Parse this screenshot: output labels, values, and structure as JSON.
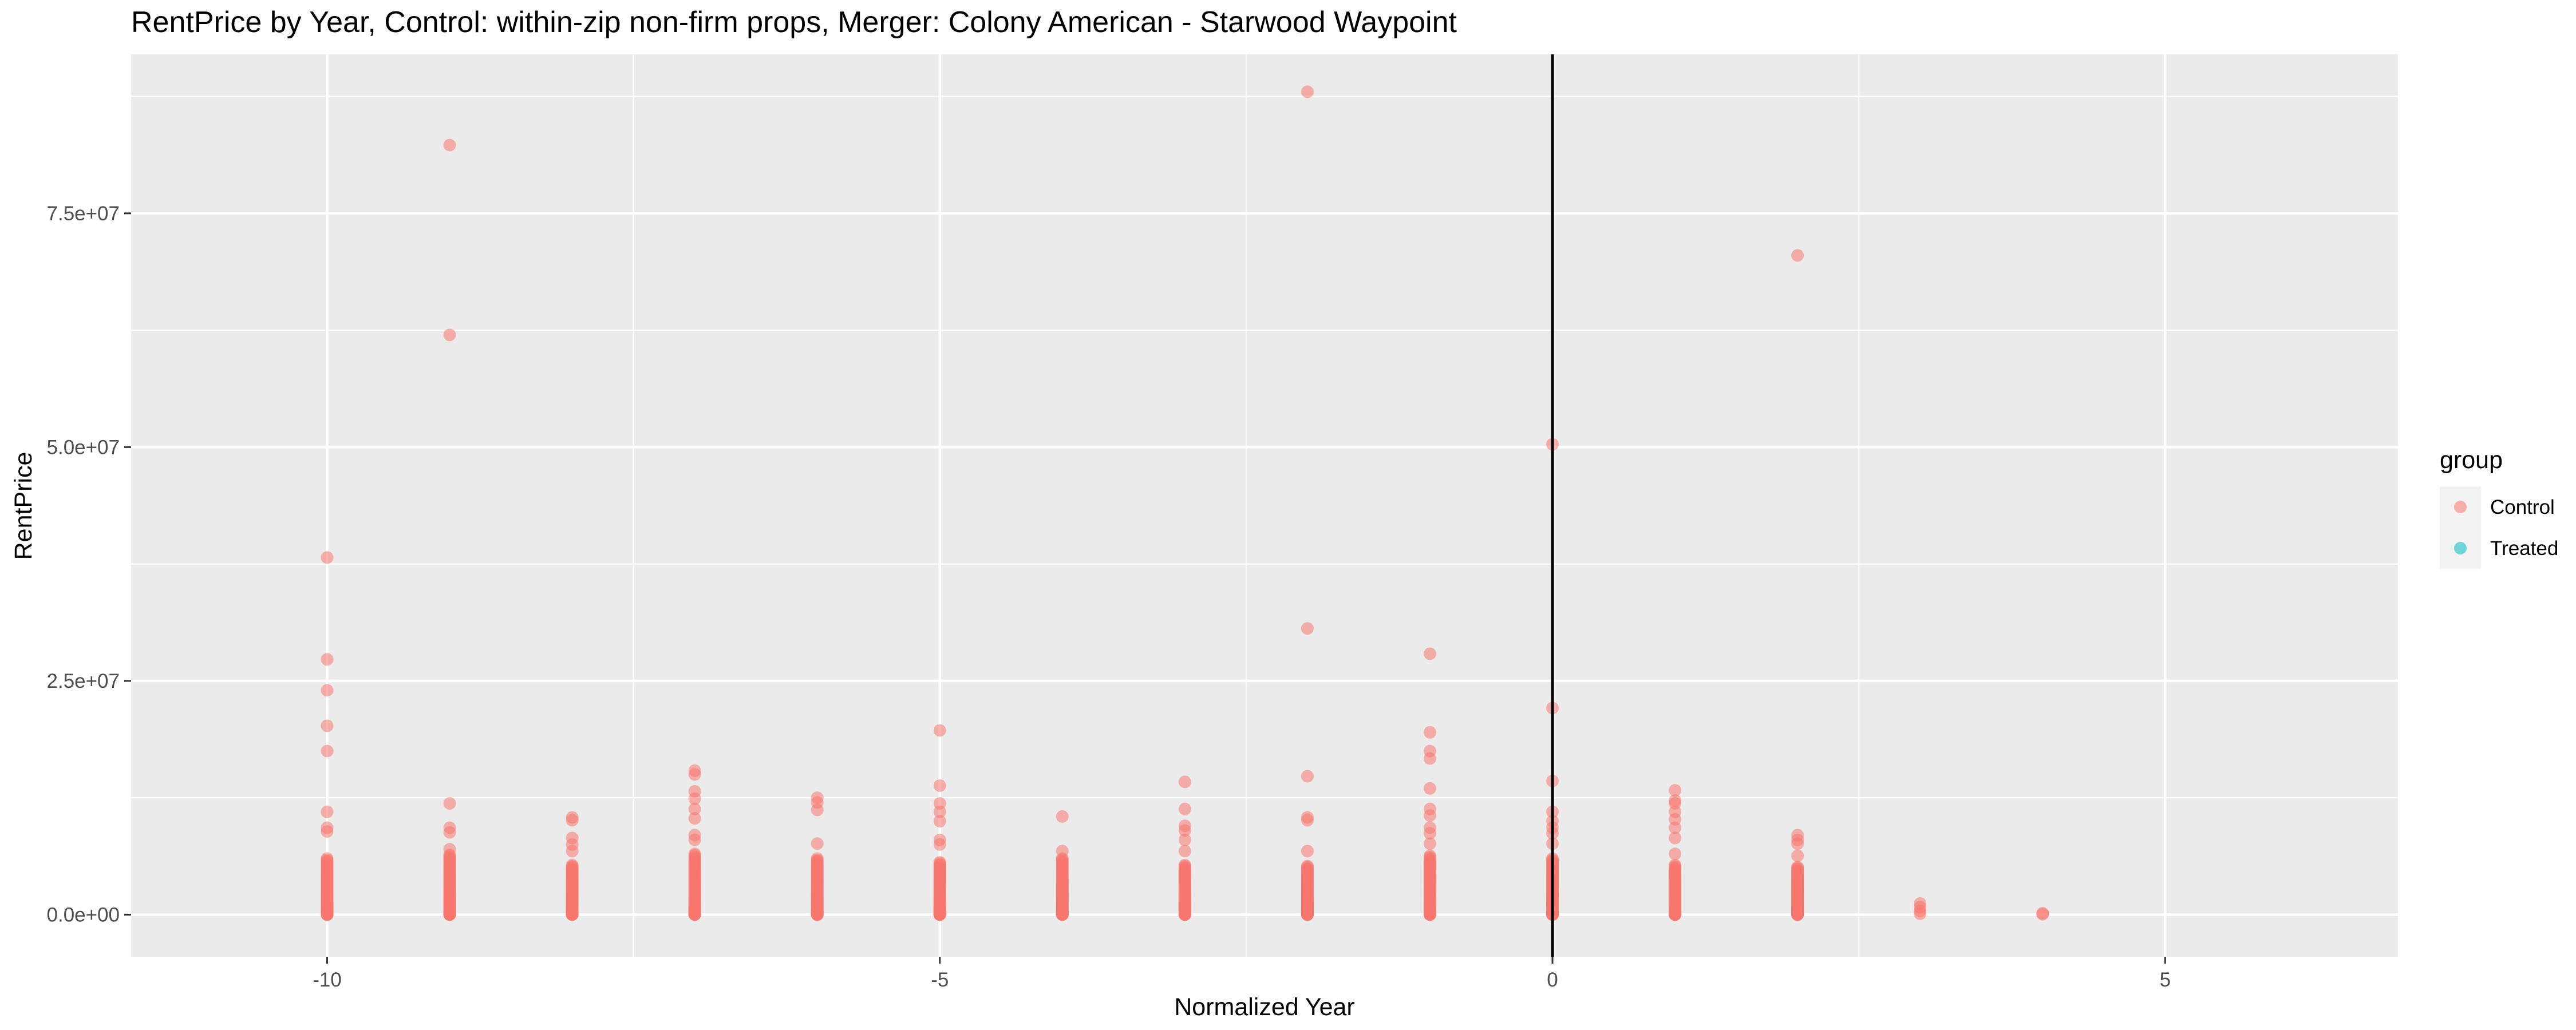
{
  "chart_data": {
    "type": "scatter",
    "title": "RentPrice by Year, Control: within-zip non-firm props, Merger: Colony American - Starwood Waypoint",
    "xlabel": "Normalized Year",
    "ylabel": "RentPrice",
    "xlim": [
      -11.6,
      6.9
    ],
    "ylim": [
      -4500000,
      92000000
    ],
    "x_ticks": [
      {
        "value": -10,
        "label": "-10"
      },
      {
        "value": -5,
        "label": "-5"
      },
      {
        "value": 0,
        "label": "0"
      },
      {
        "value": 5,
        "label": "5"
      }
    ],
    "y_ticks": [
      {
        "value": 0,
        "label": "0.0e+00"
      },
      {
        "value": 25000000,
        "label": "2.5e+07"
      },
      {
        "value": 50000000,
        "label": "5.0e+07"
      },
      {
        "value": 75000000,
        "label": "7.5e+07"
      }
    ],
    "x_minor_ticks": [
      -7.5,
      -2.5,
      2.5
    ],
    "y_minor_ticks": [
      12500000,
      37500000,
      62500000,
      87500000
    ],
    "grid": true,
    "vline": {
      "x": 0,
      "color": "#000000"
    },
    "legend": {
      "title": "group",
      "placement": "right",
      "entries": [
        {
          "label": "Control",
          "color": "#F8766D"
        },
        {
          "label": "Treated",
          "color": "#00BFC4"
        }
      ]
    },
    "series": [
      {
        "name": "Control",
        "color": "#F8766D",
        "opacity": 0.55,
        "points": [
          [
            -10,
            38200000
          ],
          [
            -10,
            27300000
          ],
          [
            -10,
            24000000
          ],
          [
            -10,
            20200000
          ],
          [
            -10,
            17500000
          ],
          [
            -10,
            11000000
          ],
          [
            -10,
            9300000
          ],
          [
            -10,
            8900000
          ],
          [
            -9,
            82300000
          ],
          [
            -9,
            62000000
          ],
          [
            -9,
            11900000
          ],
          [
            -9,
            9300000
          ],
          [
            -9,
            8800000
          ],
          [
            -9,
            7000000
          ],
          [
            -8,
            10400000
          ],
          [
            -8,
            10100000
          ],
          [
            -8,
            8200000
          ],
          [
            -8,
            7500000
          ],
          [
            -8,
            6800000
          ],
          [
            -7,
            15400000
          ],
          [
            -7,
            15000000
          ],
          [
            -7,
            13200000
          ],
          [
            -7,
            12400000
          ],
          [
            -7,
            11300000
          ],
          [
            -7,
            10300000
          ],
          [
            -7,
            8500000
          ],
          [
            -7,
            8000000
          ],
          [
            -6,
            12500000
          ],
          [
            -6,
            12000000
          ],
          [
            -6,
            11200000
          ],
          [
            -6,
            7600000
          ],
          [
            -5,
            19700000
          ],
          [
            -5,
            13800000
          ],
          [
            -5,
            11900000
          ],
          [
            -5,
            11000000
          ],
          [
            -5,
            10000000
          ],
          [
            -5,
            8000000
          ],
          [
            -5,
            7500000
          ],
          [
            -4,
            10500000
          ],
          [
            -4,
            6800000
          ],
          [
            -3,
            14200000
          ],
          [
            -3,
            11300000
          ],
          [
            -3,
            9500000
          ],
          [
            -3,
            9000000
          ],
          [
            -3,
            8000000
          ],
          [
            -3,
            6800000
          ],
          [
            -2,
            88000000
          ],
          [
            -2,
            30600000
          ],
          [
            -2,
            14800000
          ],
          [
            -2,
            10400000
          ],
          [
            -2,
            10100000
          ],
          [
            -2,
            6800000
          ],
          [
            -1,
            27900000
          ],
          [
            -1,
            19500000
          ],
          [
            -1,
            17500000
          ],
          [
            -1,
            16700000
          ],
          [
            -1,
            13500000
          ],
          [
            -1,
            11300000
          ],
          [
            -1,
            10600000
          ],
          [
            -1,
            9300000
          ],
          [
            -1,
            8700000
          ],
          [
            -1,
            7600000
          ],
          [
            0,
            50300000
          ],
          [
            0,
            22100000
          ],
          [
            0,
            14300000
          ],
          [
            0,
            11000000
          ],
          [
            0,
            10000000
          ],
          [
            0,
            9300000
          ],
          [
            0,
            8700000
          ],
          [
            0,
            7600000
          ],
          [
            1,
            13300000
          ],
          [
            1,
            12200000
          ],
          [
            1,
            11900000
          ],
          [
            1,
            11000000
          ],
          [
            1,
            10200000
          ],
          [
            1,
            9300000
          ],
          [
            1,
            8200000
          ],
          [
            1,
            6500000
          ],
          [
            2,
            70500000
          ],
          [
            2,
            8500000
          ],
          [
            2,
            8000000
          ],
          [
            2,
            7600000
          ],
          [
            2,
            6300000
          ],
          [
            3,
            1200000
          ],
          [
            3,
            800000
          ],
          [
            3,
            400000
          ],
          [
            3,
            100000
          ],
          [
            4,
            150000
          ],
          [
            4,
            50000
          ]
        ],
        "dense_columns": [
          {
            "x": -10,
            "ymax": 6000000
          },
          {
            "x": -9,
            "ymax": 6400000
          },
          {
            "x": -8,
            "ymax": 5300000
          },
          {
            "x": -7,
            "ymax": 6500000
          },
          {
            "x": -6,
            "ymax": 6000000
          },
          {
            "x": -5,
            "ymax": 5600000
          },
          {
            "x": -4,
            "ymax": 6000000
          },
          {
            "x": -3,
            "ymax": 5300000
          },
          {
            "x": -2,
            "ymax": 5200000
          },
          {
            "x": -1,
            "ymax": 6300000
          },
          {
            "x": 0,
            "ymax": 6000000
          },
          {
            "x": 1,
            "ymax": 5300000
          },
          {
            "x": 2,
            "ymax": 5100000
          }
        ]
      },
      {
        "name": "Treated",
        "color": "#00BFC4",
        "points": []
      }
    ]
  }
}
